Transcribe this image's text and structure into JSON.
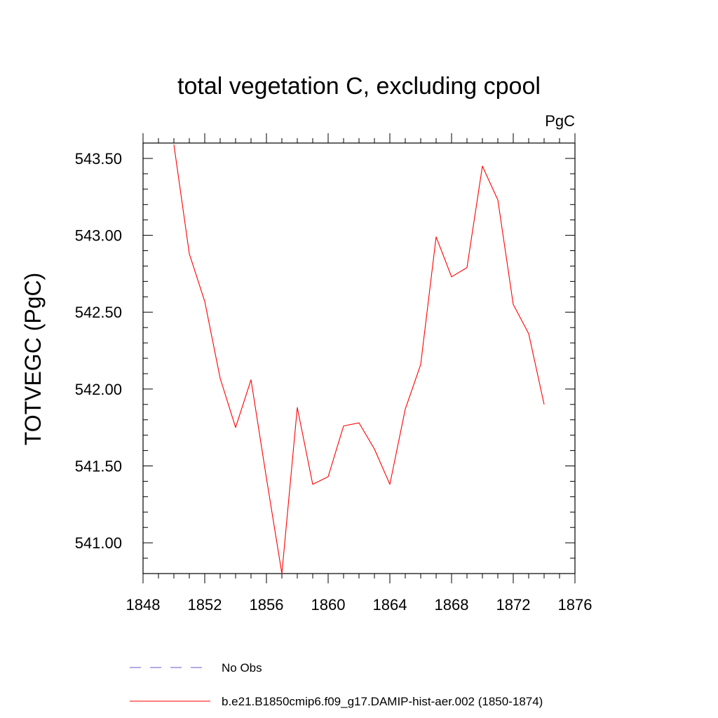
{
  "chart_data": {
    "type": "line",
    "title": "total vegetation C, excluding cpool",
    "units": "PgC",
    "ylabel": "TOTVEGC  (PgC)",
    "xlabel": "",
    "xlim": [
      1848,
      1876
    ],
    "ylim": [
      540.8,
      543.6
    ],
    "x_ticks": [
      1848,
      1852,
      1856,
      1860,
      1864,
      1868,
      1872,
      1876
    ],
    "y_ticks": [
      "541.00",
      "541.50",
      "542.00",
      "542.50",
      "543.00",
      "543.50"
    ],
    "grid": false,
    "series": [
      {
        "name": "b.e21.B1850cmip6.f09_g17.DAMIP-hist-aer.002 (1850-1874)",
        "color": "#ff0000",
        "x": [
          1850,
          1851,
          1852,
          1853,
          1854,
          1855,
          1856,
          1857,
          1858,
          1859,
          1860,
          1861,
          1862,
          1863,
          1864,
          1865,
          1866,
          1867,
          1868,
          1869,
          1870,
          1871,
          1872,
          1873,
          1874
        ],
        "y": [
          543.59,
          542.88,
          542.57,
          542.07,
          541.75,
          542.06,
          541.42,
          540.8,
          541.88,
          541.38,
          541.43,
          541.76,
          541.78,
          541.61,
          541.38,
          541.87,
          542.16,
          542.99,
          542.73,
          542.79,
          543.45,
          543.23,
          542.55,
          542.36,
          541.9
        ]
      }
    ]
  },
  "legend": {
    "items": [
      {
        "label": "No Obs",
        "color": "#6a5acd",
        "style": "dashed"
      },
      {
        "label": "b.e21.B1850cmip6.f09_g17.DAMIP-hist-aer.002 (1850-1874)",
        "color": "#ff0000",
        "style": "solid"
      }
    ]
  }
}
